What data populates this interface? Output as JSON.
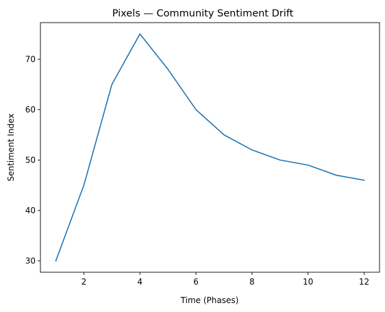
{
  "chart_data": {
    "type": "line",
    "title": "Pixels — Community Sentiment Drift",
    "xlabel": "Time (Phases)",
    "ylabel": "Sentiment Index",
    "x": [
      1,
      2,
      3,
      4,
      5,
      6,
      7,
      8,
      9,
      10,
      11,
      12
    ],
    "series": [
      {
        "values": [
          30,
          45,
          65,
          75,
          68,
          60,
          55,
          52,
          50,
          49,
          47,
          46
        ],
        "color": "#1f77b4"
      }
    ],
    "xlim": [
      0.45,
      12.55
    ],
    "ylim": [
      27.75,
      77.25
    ],
    "xticks": [
      2,
      4,
      6,
      8,
      10,
      12
    ],
    "yticks": [
      30,
      40,
      50,
      60,
      70
    ],
    "grid": false,
    "legend": "none"
  }
}
